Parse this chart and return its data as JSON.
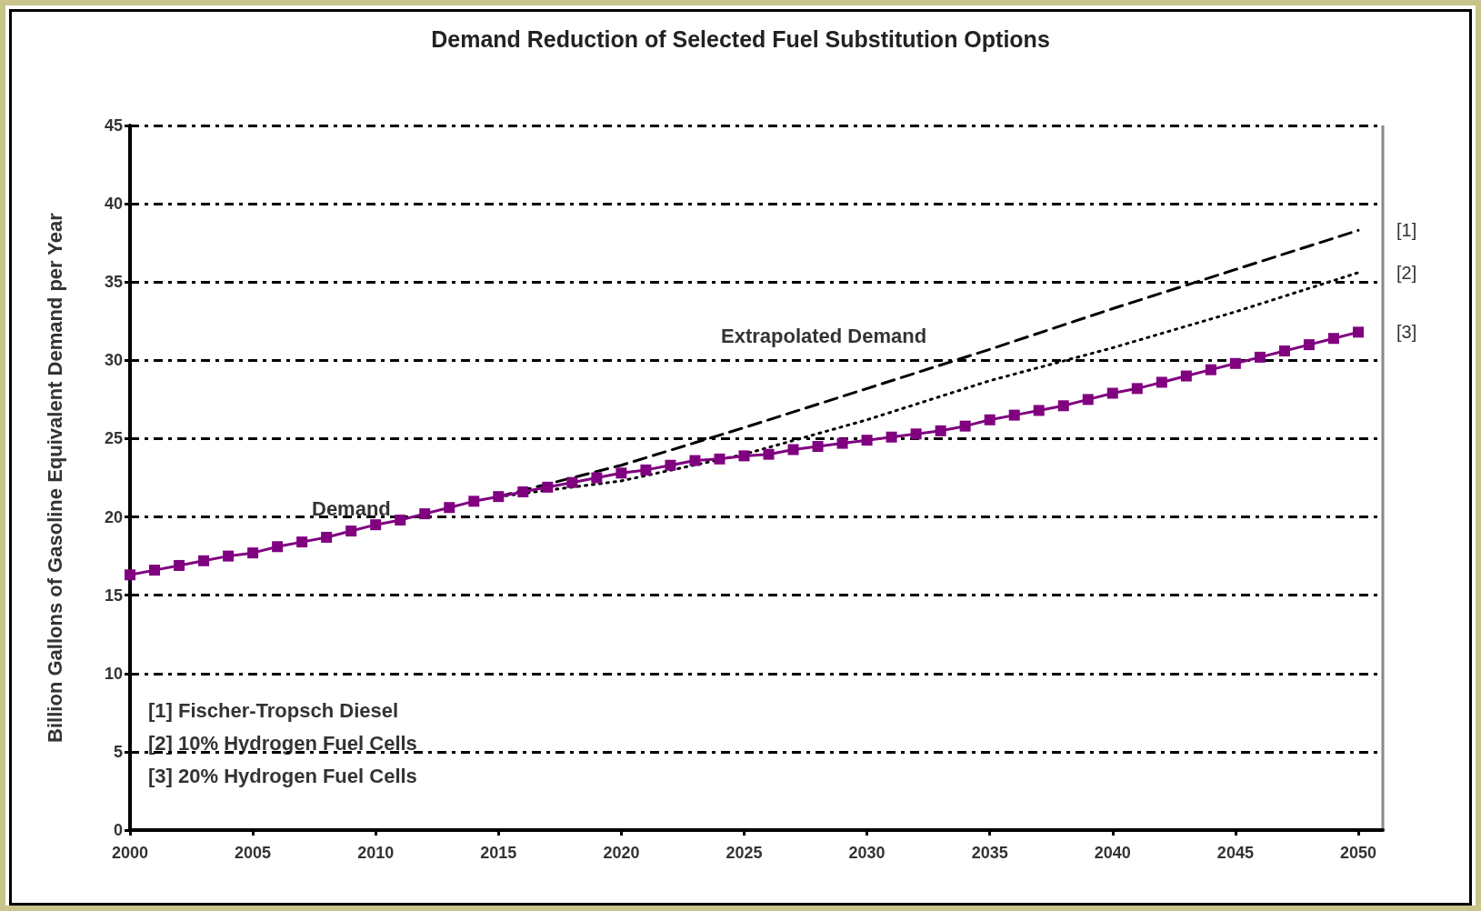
{
  "chart_data": {
    "type": "line",
    "title": "Demand Reduction of Selected Fuel Substitution Options",
    "ylabel": "Billion Gallons of Gasoline Equivalent Demand per Year",
    "xlim": [
      2000,
      2051
    ],
    "xticks": [
      2000,
      2005,
      2010,
      2015,
      2020,
      2025,
      2030,
      2035,
      2040,
      2045,
      2050
    ],
    "ylim": [
      0,
      45
    ],
    "yticks": [
      0,
      5,
      10,
      15,
      20,
      25,
      30,
      35,
      40,
      45
    ],
    "grid": "y",
    "legend": false,
    "series": [
      {
        "name": "[1]",
        "color": "#000000",
        "line_style": "dashed",
        "marker": "none",
        "x": [
          2015,
          2020,
          2025,
          2030,
          2035,
          2040,
          2045,
          2050
        ],
        "values": [
          21.3,
          23.3,
          25.7,
          28.2,
          30.7,
          33.3,
          35.8,
          38.3
        ]
      },
      {
        "name": "[2]",
        "color": "#000000",
        "line_style": "dotted",
        "marker": "none",
        "x": [
          2015,
          2020,
          2025,
          2030,
          2035,
          2040,
          2045,
          2050
        ],
        "values": [
          21.3,
          22.3,
          24.0,
          26.2,
          28.7,
          30.8,
          33.1,
          35.6
        ]
      },
      {
        "name": "[3]",
        "color": "#800080",
        "line_style": "solid",
        "marker": "square",
        "x": [
          2000,
          2001,
          2002,
          2003,
          2004,
          2005,
          2006,
          2007,
          2008,
          2009,
          2010,
          2011,
          2012,
          2013,
          2014,
          2015,
          2016,
          2017,
          2018,
          2019,
          2020,
          2021,
          2022,
          2023,
          2024,
          2025,
          2026,
          2027,
          2028,
          2029,
          2030,
          2031,
          2032,
          2033,
          2034,
          2035,
          2036,
          2037,
          2038,
          2039,
          2040,
          2041,
          2042,
          2043,
          2044,
          2045,
          2046,
          2047,
          2048,
          2049,
          2050
        ],
        "values": [
          16.3,
          16.6,
          16.9,
          17.2,
          17.5,
          17.7,
          18.1,
          18.4,
          18.7,
          19.1,
          19.5,
          19.8,
          20.2,
          20.6,
          21.0,
          21.3,
          21.6,
          21.9,
          22.2,
          22.5,
          22.8,
          23.0,
          23.3,
          23.6,
          23.7,
          23.9,
          24.0,
          24.3,
          24.5,
          24.7,
          24.9,
          25.1,
          25.3,
          25.5,
          25.8,
          26.2,
          26.5,
          26.8,
          27.1,
          27.5,
          27.9,
          28.2,
          28.6,
          29.0,
          29.4,
          29.8,
          30.2,
          30.6,
          31.0,
          31.4,
          31.8
        ]
      }
    ],
    "annotations": [
      "Demand",
      "Extrapolated Demand",
      "[1] Fischer-Tropsch Diesel",
      "[2] 10% Hydrogen Fuel Cells",
      "[3] 20% Hydrogen Fuel Cells"
    ]
  }
}
